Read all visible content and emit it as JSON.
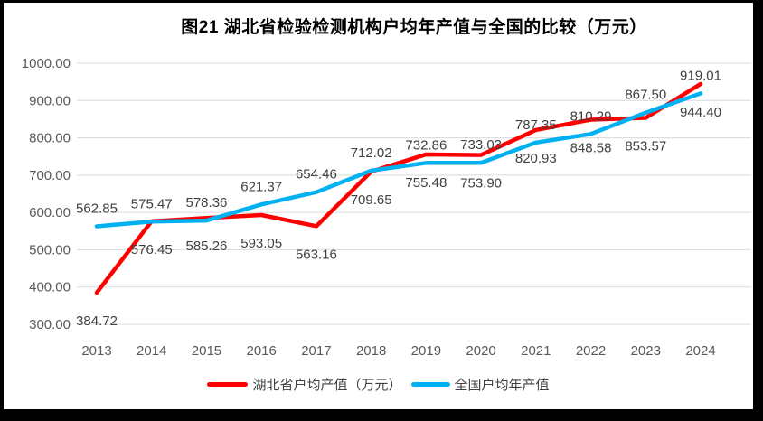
{
  "chart_data": {
    "type": "line",
    "title": "图21 湖北省检验检测机构户均年产值与全国的比较（万元）",
    "categories": [
      "2013",
      "2014",
      "2015",
      "2016",
      "2017",
      "2018",
      "2019",
      "2020",
      "2021",
      "2022",
      "2023",
      "2024"
    ],
    "series": [
      {
        "name": "湖北省户均产值（万元）",
        "color": "#ff0000",
        "label_position": "below",
        "values": [
          384.72,
          576.45,
          585.26,
          593.05,
          563.16,
          709.65,
          755.48,
          753.9,
          820.93,
          848.58,
          853.57,
          944.4
        ]
      },
      {
        "name": "全国户均年产值",
        "color": "#00b0f0",
        "label_position": "above",
        "values": [
          562.85,
          575.47,
          578.36,
          621.37,
          654.46,
          712.02,
          732.86,
          733.03,
          787.35,
          810.29,
          867.5,
          919.01
        ]
      }
    ],
    "ylim": [
      300,
      1000
    ],
    "ytick_step": 100,
    "ytick_labels": [
      "300.00",
      "400.00",
      "500.00",
      "600.00",
      "700.00",
      "800.00",
      "900.00",
      "1000.00"
    ],
    "value_decimals": 2,
    "grid": "horizontal",
    "gridline_color": "#d9d9d9",
    "axis_text_color": "#595959",
    "data_label_color": "#404040",
    "legend_position": "bottom"
  }
}
